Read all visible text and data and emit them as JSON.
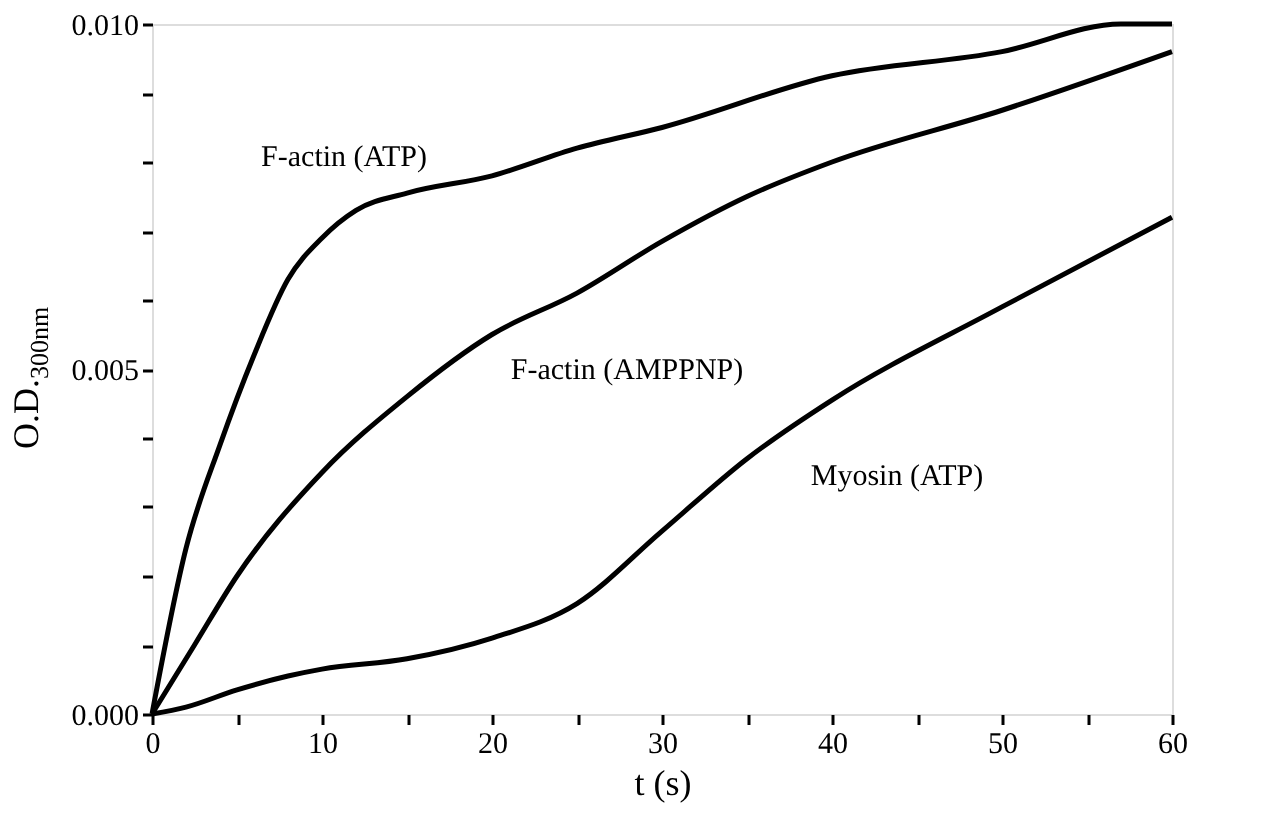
{
  "chart_data": {
    "type": "line",
    "xlabel": "t (s)",
    "ylabel": "O.D.$_{300nm}$",
    "xlim": [
      0,
      60
    ],
    "ylim": [
      0,
      0.01
    ],
    "xticks": [
      0,
      {
        "value": 5,
        "label": null
      },
      10,
      {
        "value": 15,
        "label": null
      },
      20,
      {
        "value": 25,
        "label": null
      },
      30,
      {
        "value": 35,
        "label": null
      },
      40,
      {
        "value": 45,
        "label": null
      },
      50,
      {
        "value": 55,
        "label": null
      },
      60
    ],
    "yticks": [
      {
        "value": 0,
        "label": "0.000"
      },
      {
        "value": 0.001,
        "label": null
      },
      {
        "value": 0.002,
        "label": null
      },
      {
        "value": 0.003,
        "label": null
      },
      {
        "value": 0.004,
        "label": null
      },
      {
        "value": 0.005,
        "label": "0.005"
      },
      {
        "value": 0.006,
        "label": null
      },
      {
        "value": 0.007,
        "label": null
      },
      {
        "value": 0.008,
        "label": null
      },
      {
        "value": 0.009,
        "label": null
      },
      {
        "value": 0.01,
        "label": "0.010"
      }
    ],
    "grid": false,
    "legend": false,
    "marker": "none",
    "line_style": "solid",
    "series": [
      {
        "color": "#000000",
        "x": [
          0,
          2,
          4,
          6,
          8,
          10,
          12,
          15,
          20,
          25,
          30,
          40,
          50,
          57,
          60
        ],
        "values": [
          0,
          0.0024,
          0.0039,
          0.0052,
          0.0063,
          0.0069,
          0.0073,
          0.00755,
          0.0078,
          0.0082,
          0.0085,
          0.00925,
          0.0096,
          0.01,
          0.01
        ]
      },
      {
        "color": "#000000",
        "x": [
          0,
          2.5,
          5,
          10,
          15,
          20,
          25,
          30,
          35,
          40,
          50,
          60
        ],
        "values": [
          0,
          0.001,
          0.002,
          0.0035,
          0.0046,
          0.0055,
          0.0061,
          0.00685,
          0.0075,
          0.008,
          0.00875,
          0.0096
        ]
      },
      {
        "color": "#000000",
        "x": [
          0,
          2,
          5,
          8,
          10,
          15,
          20,
          25,
          30,
          35,
          40,
          50,
          60
        ],
        "values": [
          0,
          0.0001,
          0.00035,
          0.00055,
          0.00065,
          0.0008,
          0.0011,
          0.0016,
          0.00265,
          0.0037,
          0.00455,
          0.0059,
          0.0072
        ]
      }
    ],
    "annotations": [
      {
        "text": "F-actin (ATP)",
        "x": 10,
        "y": 0.0069
      },
      {
        "text": "F-actin (AMPPNP)",
        "x": 25,
        "y": 0.0061
      },
      {
        "text": "Myosin (ATP)",
        "x": 35,
        "y": 0.0037
      }
    ]
  }
}
